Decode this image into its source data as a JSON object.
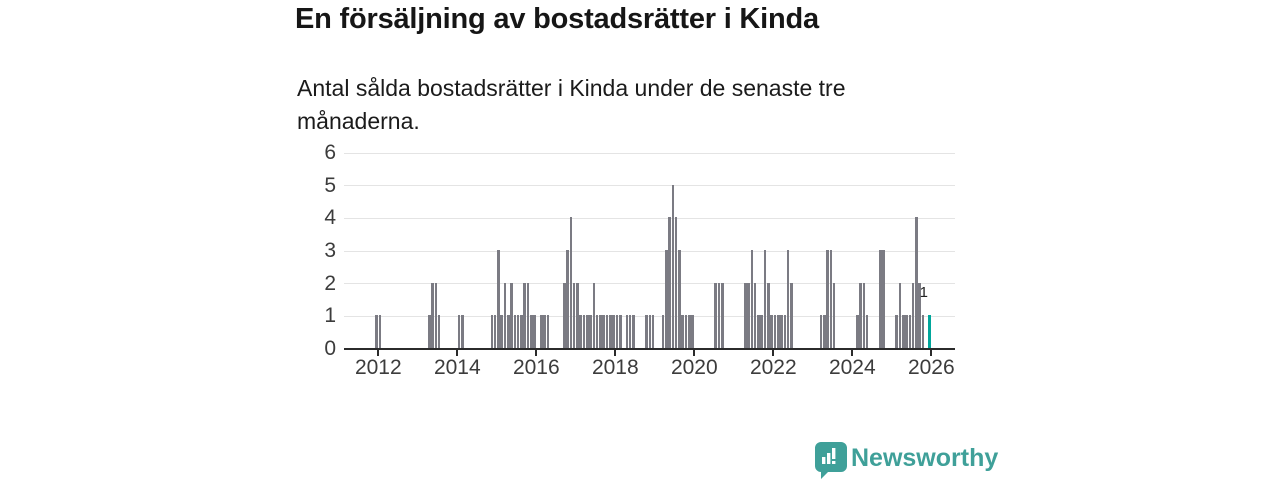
{
  "header": {
    "title": "En försäljning av bostadsrätter i Kinda",
    "subtitle": "Antal sålda bostadsrätter i Kinda under de senaste tre månaderna."
  },
  "chart_data": {
    "type": "bar",
    "title": "En försäljning av bostadsrätter i Kinda",
    "subtitle": "Antal sålda bostadsrätter i Kinda under de senaste tre månaderna.",
    "xlabel": "",
    "ylabel": "",
    "ylim": [
      0,
      6
    ],
    "yticks": [
      0,
      1,
      2,
      3,
      4,
      5,
      6
    ],
    "xticks": [
      "2012",
      "2014",
      "2016",
      "2018",
      "2020",
      "2022",
      "2024",
      "2026"
    ],
    "grid": true,
    "x_type": "monthly",
    "x_range": [
      "2011-11",
      "2026-01"
    ],
    "zero_months_omitted": true,
    "bar_color": "#7b7b83",
    "highlight_color": "#00a69b",
    "axis_color": "#2b2b2b",
    "grid_color": "#e4e4e4",
    "tick_label_color": "#3c3c3c",
    "highlight": {
      "date": "2025-12",
      "value": 1,
      "label": "1"
    },
    "points": [
      {
        "d": "2011-12",
        "v": 1
      },
      {
        "d": "2012-01",
        "v": 1
      },
      {
        "d": "2013-04",
        "v": 1
      },
      {
        "d": "2013-05",
        "v": 2
      },
      {
        "d": "2013-06",
        "v": 2
      },
      {
        "d": "2013-07",
        "v": 1
      },
      {
        "d": "2014-01",
        "v": 1
      },
      {
        "d": "2014-02",
        "v": 1
      },
      {
        "d": "2014-11",
        "v": 1
      },
      {
        "d": "2014-12",
        "v": 1
      },
      {
        "d": "2015-01",
        "v": 3
      },
      {
        "d": "2015-02",
        "v": 1
      },
      {
        "d": "2015-03",
        "v": 2
      },
      {
        "d": "2015-04",
        "v": 1
      },
      {
        "d": "2015-05",
        "v": 2
      },
      {
        "d": "2015-06",
        "v": 1
      },
      {
        "d": "2015-07",
        "v": 1
      },
      {
        "d": "2015-08",
        "v": 1
      },
      {
        "d": "2015-09",
        "v": 2
      },
      {
        "d": "2015-10",
        "v": 2
      },
      {
        "d": "2015-11",
        "v": 1
      },
      {
        "d": "2015-12",
        "v": 1
      },
      {
        "d": "2016-02",
        "v": 1
      },
      {
        "d": "2016-03",
        "v": 1
      },
      {
        "d": "2016-04",
        "v": 1
      },
      {
        "d": "2016-09",
        "v": 2
      },
      {
        "d": "2016-10",
        "v": 3
      },
      {
        "d": "2016-11",
        "v": 4
      },
      {
        "d": "2016-12",
        "v": 2
      },
      {
        "d": "2017-01",
        "v": 2
      },
      {
        "d": "2017-02",
        "v": 1
      },
      {
        "d": "2017-03",
        "v": 1
      },
      {
        "d": "2017-04",
        "v": 1
      },
      {
        "d": "2017-05",
        "v": 1
      },
      {
        "d": "2017-06",
        "v": 2
      },
      {
        "d": "2017-07",
        "v": 1
      },
      {
        "d": "2017-08",
        "v": 1
      },
      {
        "d": "2017-09",
        "v": 1
      },
      {
        "d": "2017-10",
        "v": 1
      },
      {
        "d": "2017-11",
        "v": 1
      },
      {
        "d": "2017-12",
        "v": 1
      },
      {
        "d": "2018-01",
        "v": 1
      },
      {
        "d": "2018-02",
        "v": 1
      },
      {
        "d": "2018-04",
        "v": 1
      },
      {
        "d": "2018-05",
        "v": 1
      },
      {
        "d": "2018-06",
        "v": 1
      },
      {
        "d": "2018-10",
        "v": 1
      },
      {
        "d": "2018-11",
        "v": 1
      },
      {
        "d": "2018-12",
        "v": 1
      },
      {
        "d": "2019-03",
        "v": 1
      },
      {
        "d": "2019-04",
        "v": 3
      },
      {
        "d": "2019-05",
        "v": 4
      },
      {
        "d": "2019-06",
        "v": 5
      },
      {
        "d": "2019-07",
        "v": 4
      },
      {
        "d": "2019-08",
        "v": 3
      },
      {
        "d": "2019-09",
        "v": 1
      },
      {
        "d": "2019-10",
        "v": 1
      },
      {
        "d": "2019-11",
        "v": 1
      },
      {
        "d": "2019-12",
        "v": 1
      },
      {
        "d": "2020-07",
        "v": 2
      },
      {
        "d": "2020-08",
        "v": 2
      },
      {
        "d": "2020-09",
        "v": 2
      },
      {
        "d": "2021-04",
        "v": 2
      },
      {
        "d": "2021-05",
        "v": 2
      },
      {
        "d": "2021-06",
        "v": 3
      },
      {
        "d": "2021-07",
        "v": 2
      },
      {
        "d": "2021-08",
        "v": 1
      },
      {
        "d": "2021-09",
        "v": 1
      },
      {
        "d": "2021-10",
        "v": 3
      },
      {
        "d": "2021-11",
        "v": 2
      },
      {
        "d": "2021-12",
        "v": 1
      },
      {
        "d": "2022-01",
        "v": 1
      },
      {
        "d": "2022-02",
        "v": 1
      },
      {
        "d": "2022-03",
        "v": 1
      },
      {
        "d": "2022-04",
        "v": 1
      },
      {
        "d": "2022-05",
        "v": 3
      },
      {
        "d": "2022-06",
        "v": 2
      },
      {
        "d": "2023-03",
        "v": 1
      },
      {
        "d": "2023-04",
        "v": 1
      },
      {
        "d": "2023-05",
        "v": 3
      },
      {
        "d": "2023-06",
        "v": 3
      },
      {
        "d": "2023-07",
        "v": 2
      },
      {
        "d": "2024-02",
        "v": 1
      },
      {
        "d": "2024-03",
        "v": 2
      },
      {
        "d": "2024-04",
        "v": 2
      },
      {
        "d": "2024-05",
        "v": 1
      },
      {
        "d": "2024-09",
        "v": 3
      },
      {
        "d": "2024-10",
        "v": 3
      },
      {
        "d": "2025-02",
        "v": 1
      },
      {
        "d": "2025-03",
        "v": 2
      },
      {
        "d": "2025-04",
        "v": 1
      },
      {
        "d": "2025-05",
        "v": 1
      },
      {
        "d": "2025-06",
        "v": 1
      },
      {
        "d": "2025-07",
        "v": 2
      },
      {
        "d": "2025-08",
        "v": 4
      },
      {
        "d": "2025-09",
        "v": 2
      },
      {
        "d": "2025-10",
        "v": 1
      },
      {
        "d": "2025-12",
        "v": 1
      }
    ]
  },
  "footer": {
    "brand": "Newsworthy",
    "brand_color": "#3fa099",
    "logo_icon": "newsworthy-speech-bubble-bar-chart-icon"
  }
}
